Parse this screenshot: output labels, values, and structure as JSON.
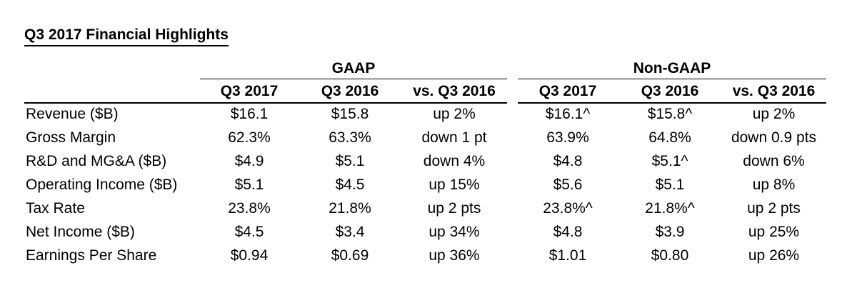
{
  "title": "Q3 2017 Financial Highlights",
  "groups": {
    "gaap": "GAAP",
    "nongaap": "Non-GAAP"
  },
  "columns": [
    "Q3 2017",
    "Q3 2016",
    "vs. Q3 2016",
    "Q3 2017",
    "Q3 2016",
    "vs. Q3 2016"
  ],
  "rows": [
    {
      "label": "Revenue ($B)",
      "values": [
        "$16.1",
        "$15.8",
        "up 2%",
        "$16.1^",
        "$15.8^",
        "up 2%"
      ]
    },
    {
      "label": "Gross Margin",
      "values": [
        "62.3%",
        "63.3%",
        "down 1 pt",
        "63.9%",
        "64.8%",
        "down 0.9 pts"
      ]
    },
    {
      "label": "R&D and MG&A ($B)",
      "values": [
        "$4.9",
        "$5.1",
        "down 4%",
        "$4.8",
        "$5.1^",
        "down 6%"
      ]
    },
    {
      "label": "Operating Income ($B)",
      "values": [
        "$5.1",
        "$4.5",
        "up 15%",
        "$5.6",
        "$5.1",
        "up 8%"
      ]
    },
    {
      "label": "Tax Rate",
      "values": [
        "23.8%",
        "21.8%",
        "up 2 pts",
        "23.8%^",
        "21.8%^",
        "up 2 pts"
      ]
    },
    {
      "label": "Net Income ($B)",
      "values": [
        "$4.5",
        "$3.4",
        "up 34%",
        "$4.8",
        "$3.9",
        "up 25%"
      ]
    },
    {
      "label": "Earnings Per Share",
      "values": [
        "$0.94",
        "$0.69",
        "up 36%",
        "$1.01",
        "$0.80",
        "up 26%"
      ]
    }
  ]
}
